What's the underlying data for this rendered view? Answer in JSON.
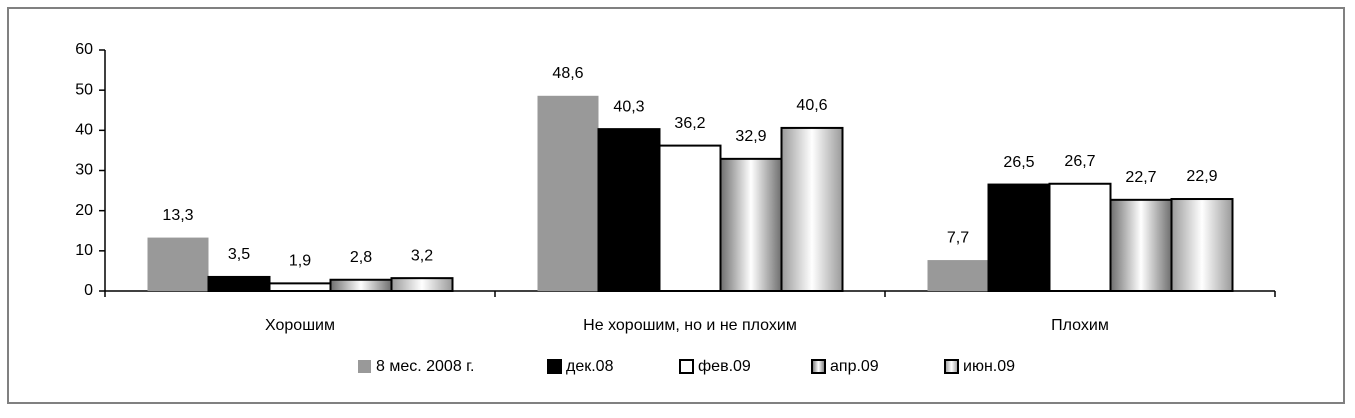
{
  "chart_data": {
    "type": "bar",
    "categories": [
      "Хорошим",
      "Не хорошим, но и не плохим",
      "Плохим"
    ],
    "series": [
      {
        "name": "8 мес. 2008 г.",
        "color": "#999999",
        "values": [
          13.3,
          48.6,
          7.7
        ],
        "value_labels": [
          "13,3",
          "48,6",
          "7,7"
        ]
      },
      {
        "name": "дек.08",
        "color": "#000000",
        "values": [
          3.5,
          40.3,
          26.5
        ],
        "value_labels": [
          "3,5",
          "40,3",
          "26,5"
        ]
      },
      {
        "name": "фев.09",
        "color": "#ffffff",
        "values": [
          1.9,
          36.2,
          26.7
        ],
        "value_labels": [
          "1,9",
          "36,2",
          "26,7"
        ]
      },
      {
        "name": "апр.09",
        "color": "#6e6e6e",
        "values": [
          2.8,
          32.9,
          22.7
        ],
        "value_labels": [
          "2,8",
          "32,9",
          "22,7"
        ]
      },
      {
        "name": "июн.09",
        "color": "#9a9a9a",
        "values": [
          3.2,
          40.6,
          22.9
        ],
        "value_labels": [
          "3,2",
          "40,6",
          "22,9"
        ]
      }
    ],
    "ylim": [
      0,
      60
    ],
    "yticks": [
      0,
      10,
      20,
      30,
      40,
      50,
      60
    ],
    "grid": false
  }
}
